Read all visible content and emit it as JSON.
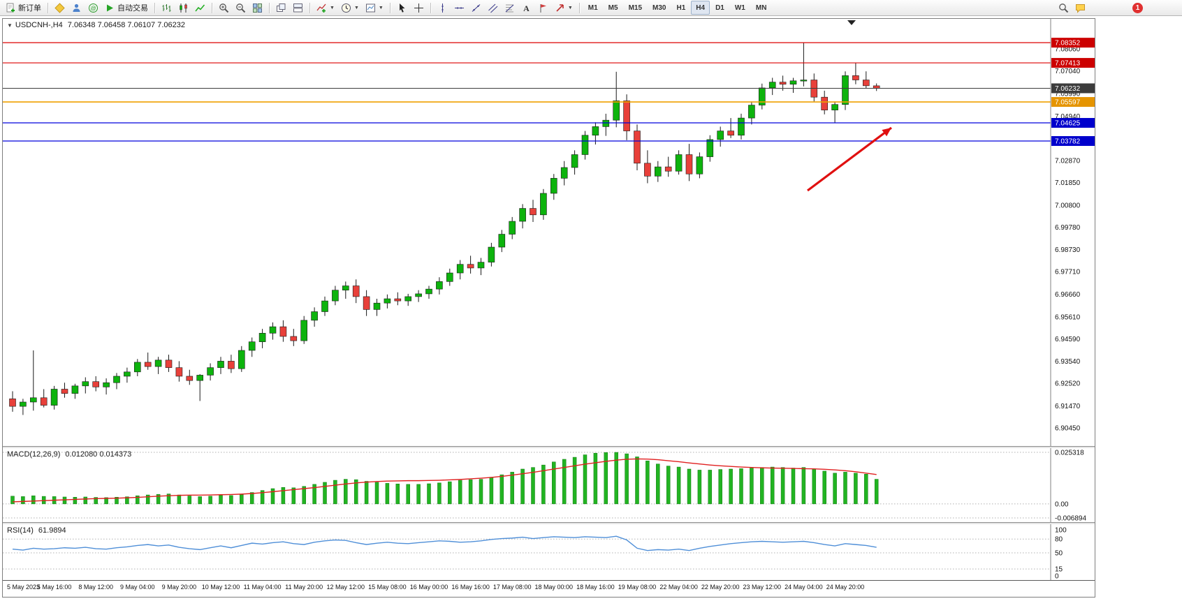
{
  "toolbar": {
    "new_order_label": "新订单",
    "autotrade_label": "自动交易",
    "timeframes": [
      "M1",
      "M5",
      "M15",
      "M30",
      "H1",
      "H4",
      "D1",
      "W1",
      "MN"
    ],
    "active_timeframe": "H4",
    "notification_count": "1",
    "icons": [
      "new-order-icon",
      "mql5-market-icon",
      "profile-icon",
      "community-icon",
      "autotrade-play-icon",
      "bar-chart-icon",
      "candlestick-chart-icon",
      "line-chart-icon",
      "zoom-in-icon",
      "zoom-out-icon",
      "tile-windows-icon",
      "cascade-windows-icon",
      "arrange-horizontal-icon",
      "indicators-icon",
      "periods-clock-icon",
      "templates-icon",
      "cursor-icon",
      "crosshair-icon",
      "vertical-line-icon",
      "horizontal-line-icon",
      "trendline-icon",
      "channel-icon",
      "fibonacci-icon",
      "text-icon",
      "text-label-icon",
      "arrows-icon",
      "search-icon",
      "chat-icon"
    ]
  },
  "chart": {
    "symbol_header": "USDCNH-,H4",
    "ohlc_text": "7.06348 7.06458 7.06107 7.06232",
    "open": "7.06348",
    "high": "7.06458",
    "low": "7.06107",
    "close": "7.06232"
  },
  "chart_data": {
    "type": "candlestick",
    "symbol": "USDCNH-",
    "timeframe": "H4",
    "ylim": [
      6.898,
      7.092
    ],
    "colors": {
      "up": "#0db30d",
      "down": "#e8403a",
      "wick": "#1a1a1a"
    },
    "price_scale": [
      7.0806,
      7.0704,
      7.0599,
      7.0494,
      7.0287,
      7.0185,
      7.008,
      6.9978,
      6.9873,
      6.9771,
      6.9666,
      6.9561,
      6.9459,
      6.9354,
      6.9252,
      6.9147,
      6.9045
    ],
    "hlines": [
      {
        "price": 7.08352,
        "color": "#dd0000",
        "badge": "#cc0000",
        "width": 1.2,
        "name": "resistance-line-1"
      },
      {
        "price": 7.07413,
        "color": "#dd0000",
        "badge": "#cc0000",
        "width": 1.2,
        "name": "resistance-line-2"
      },
      {
        "price": 7.05597,
        "color": "#efa000",
        "badge": "#e59400",
        "width": 1.6,
        "name": "pivot-line"
      },
      {
        "price": 7.04625,
        "color": "#0000dd",
        "badge": "#0000cc",
        "width": 1.2,
        "name": "support-line-1"
      },
      {
        "price": 7.03782,
        "color": "#0000dd",
        "badge": "#0000cc",
        "width": 1.2,
        "name": "support-line-2"
      },
      {
        "price": 7.06232,
        "color": "#3c3c3c",
        "badge": "#3c3c3c",
        "width": 1,
        "name": "current-price-line"
      }
    ],
    "current_price": 7.06232,
    "annotation_arrow": {
      "from": [
        1152,
        246
      ],
      "to": [
        1272,
        156
      ],
      "color": "#e01010"
    },
    "time_labels": [
      "5 May 2023",
      "5 May 16:00",
      "8 May 12:00",
      "9 May 04:00",
      "9 May 20:00",
      "10 May 12:00",
      "11 May 04:00",
      "11 May 20:00",
      "12 May 12:00",
      "15 May 08:00",
      "16 May 00:00",
      "16 May 16:00",
      "17 May 08:00",
      "18 May 00:00",
      "18 May 16:00",
      "19 May 08:00",
      "22 May 04:00",
      "22 May 20:00",
      "23 May 12:00",
      "24 May 04:00",
      "24 May 20:00"
    ],
    "candles": [
      [
        6.918,
        6.9215,
        6.912,
        6.9145
      ],
      [
        6.9145,
        6.918,
        6.9105,
        6.9165
      ],
      [
        6.9165,
        6.9405,
        6.9125,
        6.9185
      ],
      [
        6.9185,
        6.9225,
        6.914,
        6.915
      ],
      [
        6.915,
        6.924,
        6.913,
        6.9225
      ],
      [
        6.9225,
        6.9255,
        6.9185,
        6.9205
      ],
      [
        6.9205,
        6.925,
        6.918,
        6.924
      ],
      [
        6.924,
        6.928,
        6.9205,
        6.926
      ],
      [
        6.926,
        6.9285,
        6.9215,
        6.9235
      ],
      [
        6.9235,
        6.9275,
        6.92,
        6.9255
      ],
      [
        6.9255,
        6.93,
        6.9225,
        6.9285
      ],
      [
        6.9285,
        6.9325,
        6.9255,
        6.9305
      ],
      [
        6.9305,
        6.9365,
        6.9285,
        6.935
      ],
      [
        6.935,
        6.9395,
        6.9315,
        6.933
      ],
      [
        6.933,
        6.9375,
        6.9295,
        6.936
      ],
      [
        6.936,
        6.9385,
        6.9305,
        6.9325
      ],
      [
        6.9325,
        6.9355,
        6.926,
        6.9285
      ],
      [
        6.9285,
        6.9315,
        6.9245,
        6.9265
      ],
      [
        6.9265,
        6.9295,
        6.917,
        6.929
      ],
      [
        6.929,
        6.9345,
        6.9265,
        6.9325
      ],
      [
        6.9325,
        6.9375,
        6.9295,
        6.9355
      ],
      [
        6.9355,
        6.9385,
        6.93,
        6.932
      ],
      [
        6.932,
        6.9425,
        6.9305,
        6.9405
      ],
      [
        6.9405,
        6.9465,
        6.9375,
        6.9445
      ],
      [
        6.9445,
        6.9505,
        6.9415,
        6.9485
      ],
      [
        6.9485,
        6.9535,
        6.9455,
        6.9515
      ],
      [
        6.9515,
        6.9545,
        6.9445,
        6.947
      ],
      [
        6.947,
        6.9505,
        6.9425,
        6.945
      ],
      [
        6.945,
        6.9565,
        6.9435,
        6.9545
      ],
      [
        6.9545,
        6.9605,
        6.9515,
        6.9585
      ],
      [
        6.9585,
        6.9655,
        6.9565,
        6.9635
      ],
      [
        6.9635,
        6.9705,
        6.9615,
        6.9685
      ],
      [
        6.9685,
        6.9725,
        6.9645,
        6.9705
      ],
      [
        6.9705,
        6.9735,
        6.9625,
        6.9655
      ],
      [
        6.9655,
        6.9685,
        6.9565,
        6.9595
      ],
      [
        6.9595,
        6.9645,
        6.9565,
        6.9625
      ],
      [
        6.9625,
        6.9665,
        6.96,
        6.9645
      ],
      [
        6.9645,
        6.9675,
        6.9615,
        6.9635
      ],
      [
        6.9635,
        6.9668,
        6.9612,
        6.9655
      ],
      [
        6.9655,
        6.9685,
        6.963,
        6.9668
      ],
      [
        6.9668,
        6.9705,
        6.9645,
        6.969
      ],
      [
        6.969,
        6.9745,
        6.9665,
        6.9725
      ],
      [
        6.9725,
        6.9785,
        6.9705,
        6.9765
      ],
      [
        6.9765,
        6.9825,
        6.9735,
        6.9805
      ],
      [
        6.9805,
        6.9845,
        6.9762,
        6.9788
      ],
      [
        6.9788,
        6.9835,
        6.9755,
        6.9815
      ],
      [
        6.9815,
        6.9905,
        6.9795,
        6.9885
      ],
      [
        6.9885,
        6.9965,
        6.9862,
        6.9945
      ],
      [
        6.9945,
        7.0025,
        6.9922,
        7.0005
      ],
      [
        7.0005,
        7.0085,
        6.9972,
        7.0065
      ],
      [
        7.0065,
        7.0105,
        7.0002,
        7.0035
      ],
      [
        7.0035,
        7.0155,
        7.0012,
        7.0135
      ],
      [
        7.0135,
        7.0225,
        7.0105,
        7.0205
      ],
      [
        7.0205,
        7.0285,
        7.0172,
        7.0255
      ],
      [
        7.0255,
        7.0335,
        7.0222,
        7.0315
      ],
      [
        7.0315,
        7.0425,
        7.0292,
        7.0405
      ],
      [
        7.0405,
        7.0465,
        7.0362,
        7.0445
      ],
      [
        7.0445,
        7.0505,
        7.0402,
        7.0475
      ],
      [
        7.0475,
        7.07,
        7.0442,
        7.0565
      ],
      [
        7.0565,
        7.0595,
        7.0382,
        7.0425
      ],
      [
        7.0425,
        7.0455,
        7.0242,
        7.0275
      ],
      [
        7.0275,
        7.0335,
        7.0182,
        7.0215
      ],
      [
        7.0215,
        7.0285,
        7.0188,
        7.0258
      ],
      [
        7.0258,
        7.0305,
        7.0212,
        7.0238
      ],
      [
        7.0238,
        7.0335,
        7.0222,
        7.0315
      ],
      [
        7.0315,
        7.0365,
        7.0192,
        7.0225
      ],
      [
        7.0225,
        7.0325,
        7.0205,
        7.0305
      ],
      [
        7.0305,
        7.0405,
        7.0282,
        7.0385
      ],
      [
        7.0385,
        7.0445,
        7.0352,
        7.0425
      ],
      [
        7.0425,
        7.0485,
        7.0392,
        7.0405
      ],
      [
        7.0405,
        7.0505,
        7.0385,
        7.0485
      ],
      [
        7.0485,
        7.0562,
        7.0455,
        7.0545
      ],
      [
        7.0545,
        7.0645,
        7.0525,
        7.0625
      ],
      [
        7.0625,
        7.0672,
        7.0592,
        7.0652
      ],
      [
        7.0652,
        7.0682,
        7.0612,
        7.0642
      ],
      [
        7.0642,
        7.0672,
        7.0602,
        7.0658
      ],
      [
        7.0658,
        7.0835,
        7.0632,
        7.0662
      ],
      [
        7.0662,
        7.0692,
        7.0562,
        7.0582
      ],
      [
        7.0582,
        7.0612,
        7.0502,
        7.0522
      ],
      [
        7.0522,
        7.0562,
        7.0463,
        7.0548
      ],
      [
        7.0548,
        7.0702,
        7.0522,
        7.0682
      ],
      [
        7.0682,
        7.0741,
        7.0642,
        7.0662
      ],
      [
        7.0662,
        7.0702,
        7.0622,
        7.0635
      ],
      [
        7.06348,
        7.06458,
        7.06107,
        7.06232
      ]
    ],
    "indicators": {
      "macd": {
        "label": "MACD(12,26,9)",
        "values_label": "0.012080 0.014373",
        "ylim": [
          -0.006894,
          0.025318
        ],
        "scale": [
          {
            "v": 0.025318,
            "t": "0.025318"
          },
          {
            "v": 0,
            "t": "0.00"
          },
          {
            "v": -0.006894,
            "t": "-0.006894"
          }
        ],
        "histogram": [
          0.0038,
          0.0036,
          0.004,
          0.0037,
          0.0036,
          0.0034,
          0.0033,
          0.0034,
          0.0032,
          0.0031,
          0.0033,
          0.0035,
          0.004,
          0.0044,
          0.0047,
          0.0049,
          0.0044,
          0.0039,
          0.0036,
          0.0038,
          0.0042,
          0.0041,
          0.0046,
          0.0056,
          0.0066,
          0.0075,
          0.0081,
          0.0079,
          0.0086,
          0.0096,
          0.0106,
          0.0116,
          0.0121,
          0.0119,
          0.0111,
          0.0106,
          0.0101,
          0.0098,
          0.0096,
          0.0096,
          0.0099,
          0.0103,
          0.0109,
          0.0116,
          0.0119,
          0.0121,
          0.0131,
          0.0143,
          0.0156,
          0.0171,
          0.0179,
          0.0191,
          0.0206,
          0.0219,
          0.0229,
          0.0241,
          0.0249,
          0.0252,
          0.0253,
          0.0246,
          0.0231,
          0.0211,
          0.0196,
          0.0186,
          0.0181,
          0.0171,
          0.0166,
          0.0166,
          0.0169,
          0.0171,
          0.0173,
          0.0176,
          0.0179,
          0.0181,
          0.0179,
          0.0176,
          0.0179,
          0.0171,
          0.0161,
          0.0151,
          0.0156,
          0.0151,
          0.0146,
          0.0121
        ],
        "signal": [
          0.001,
          0.0012,
          0.0014,
          0.0016,
          0.0018,
          0.002,
          0.0022,
          0.0024,
          0.0026,
          0.0027,
          0.0028,
          0.003,
          0.0032,
          0.0035,
          0.0038,
          0.004,
          0.0042,
          0.0043,
          0.0043,
          0.0044,
          0.0045,
          0.0046,
          0.0048,
          0.0051,
          0.0055,
          0.006,
          0.0065,
          0.007,
          0.0075,
          0.008,
          0.0086,
          0.0092,
          0.0098,
          0.0103,
          0.0107,
          0.011,
          0.0112,
          0.0113,
          0.0114,
          0.0114,
          0.0115,
          0.0116,
          0.0118,
          0.012,
          0.0123,
          0.0126,
          0.013,
          0.0135,
          0.0141,
          0.0148,
          0.0155,
          0.0163,
          0.0171,
          0.0179,
          0.0187,
          0.0195,
          0.0202,
          0.0209,
          0.0215,
          0.0219,
          0.0221,
          0.022,
          0.0217,
          0.0212,
          0.0207,
          0.0201,
          0.0196,
          0.0191,
          0.0187,
          0.0184,
          0.0181,
          0.0179,
          0.0177,
          0.0176,
          0.0175,
          0.0174,
          0.0173,
          0.0172,
          0.017,
          0.0167,
          0.0163,
          0.0158,
          0.0151,
          0.0144
        ]
      },
      "rsi": {
        "label": "RSI(14)",
        "value_label": "61.9894",
        "ylim": [
          0,
          100
        ],
        "levels": [
          80,
          50,
          15
        ],
        "scale": [
          {
            "v": 100,
            "t": "100"
          },
          {
            "v": 80,
            "t": "80"
          },
          {
            "v": 50,
            "t": "50"
          },
          {
            "v": 15,
            "t": "15"
          },
          {
            "v": 0,
            "t": "0"
          }
        ],
        "values": [
          58,
          56,
          60,
          58,
          59,
          61,
          60,
          62,
          59,
          58,
          61,
          63,
          66,
          68,
          65,
          67,
          62,
          59,
          57,
          61,
          65,
          61,
          66,
          71,
          69,
          72,
          74,
          70,
          68,
          73,
          76,
          78,
          77,
          72,
          68,
          71,
          73,
          71,
          70,
          72,
          74,
          76,
          75,
          73,
          74,
          76,
          79,
          81,
          82,
          84,
          81,
          83,
          85,
          84,
          83,
          85,
          84,
          83,
          86,
          78,
          60,
          55,
          57,
          56,
          58,
          55,
          60,
          64,
          67,
          70,
          72,
          74,
          75,
          74,
          73,
          74,
          75,
          72,
          68,
          65,
          70,
          68,
          66,
          61.9894
        ]
      }
    }
  }
}
